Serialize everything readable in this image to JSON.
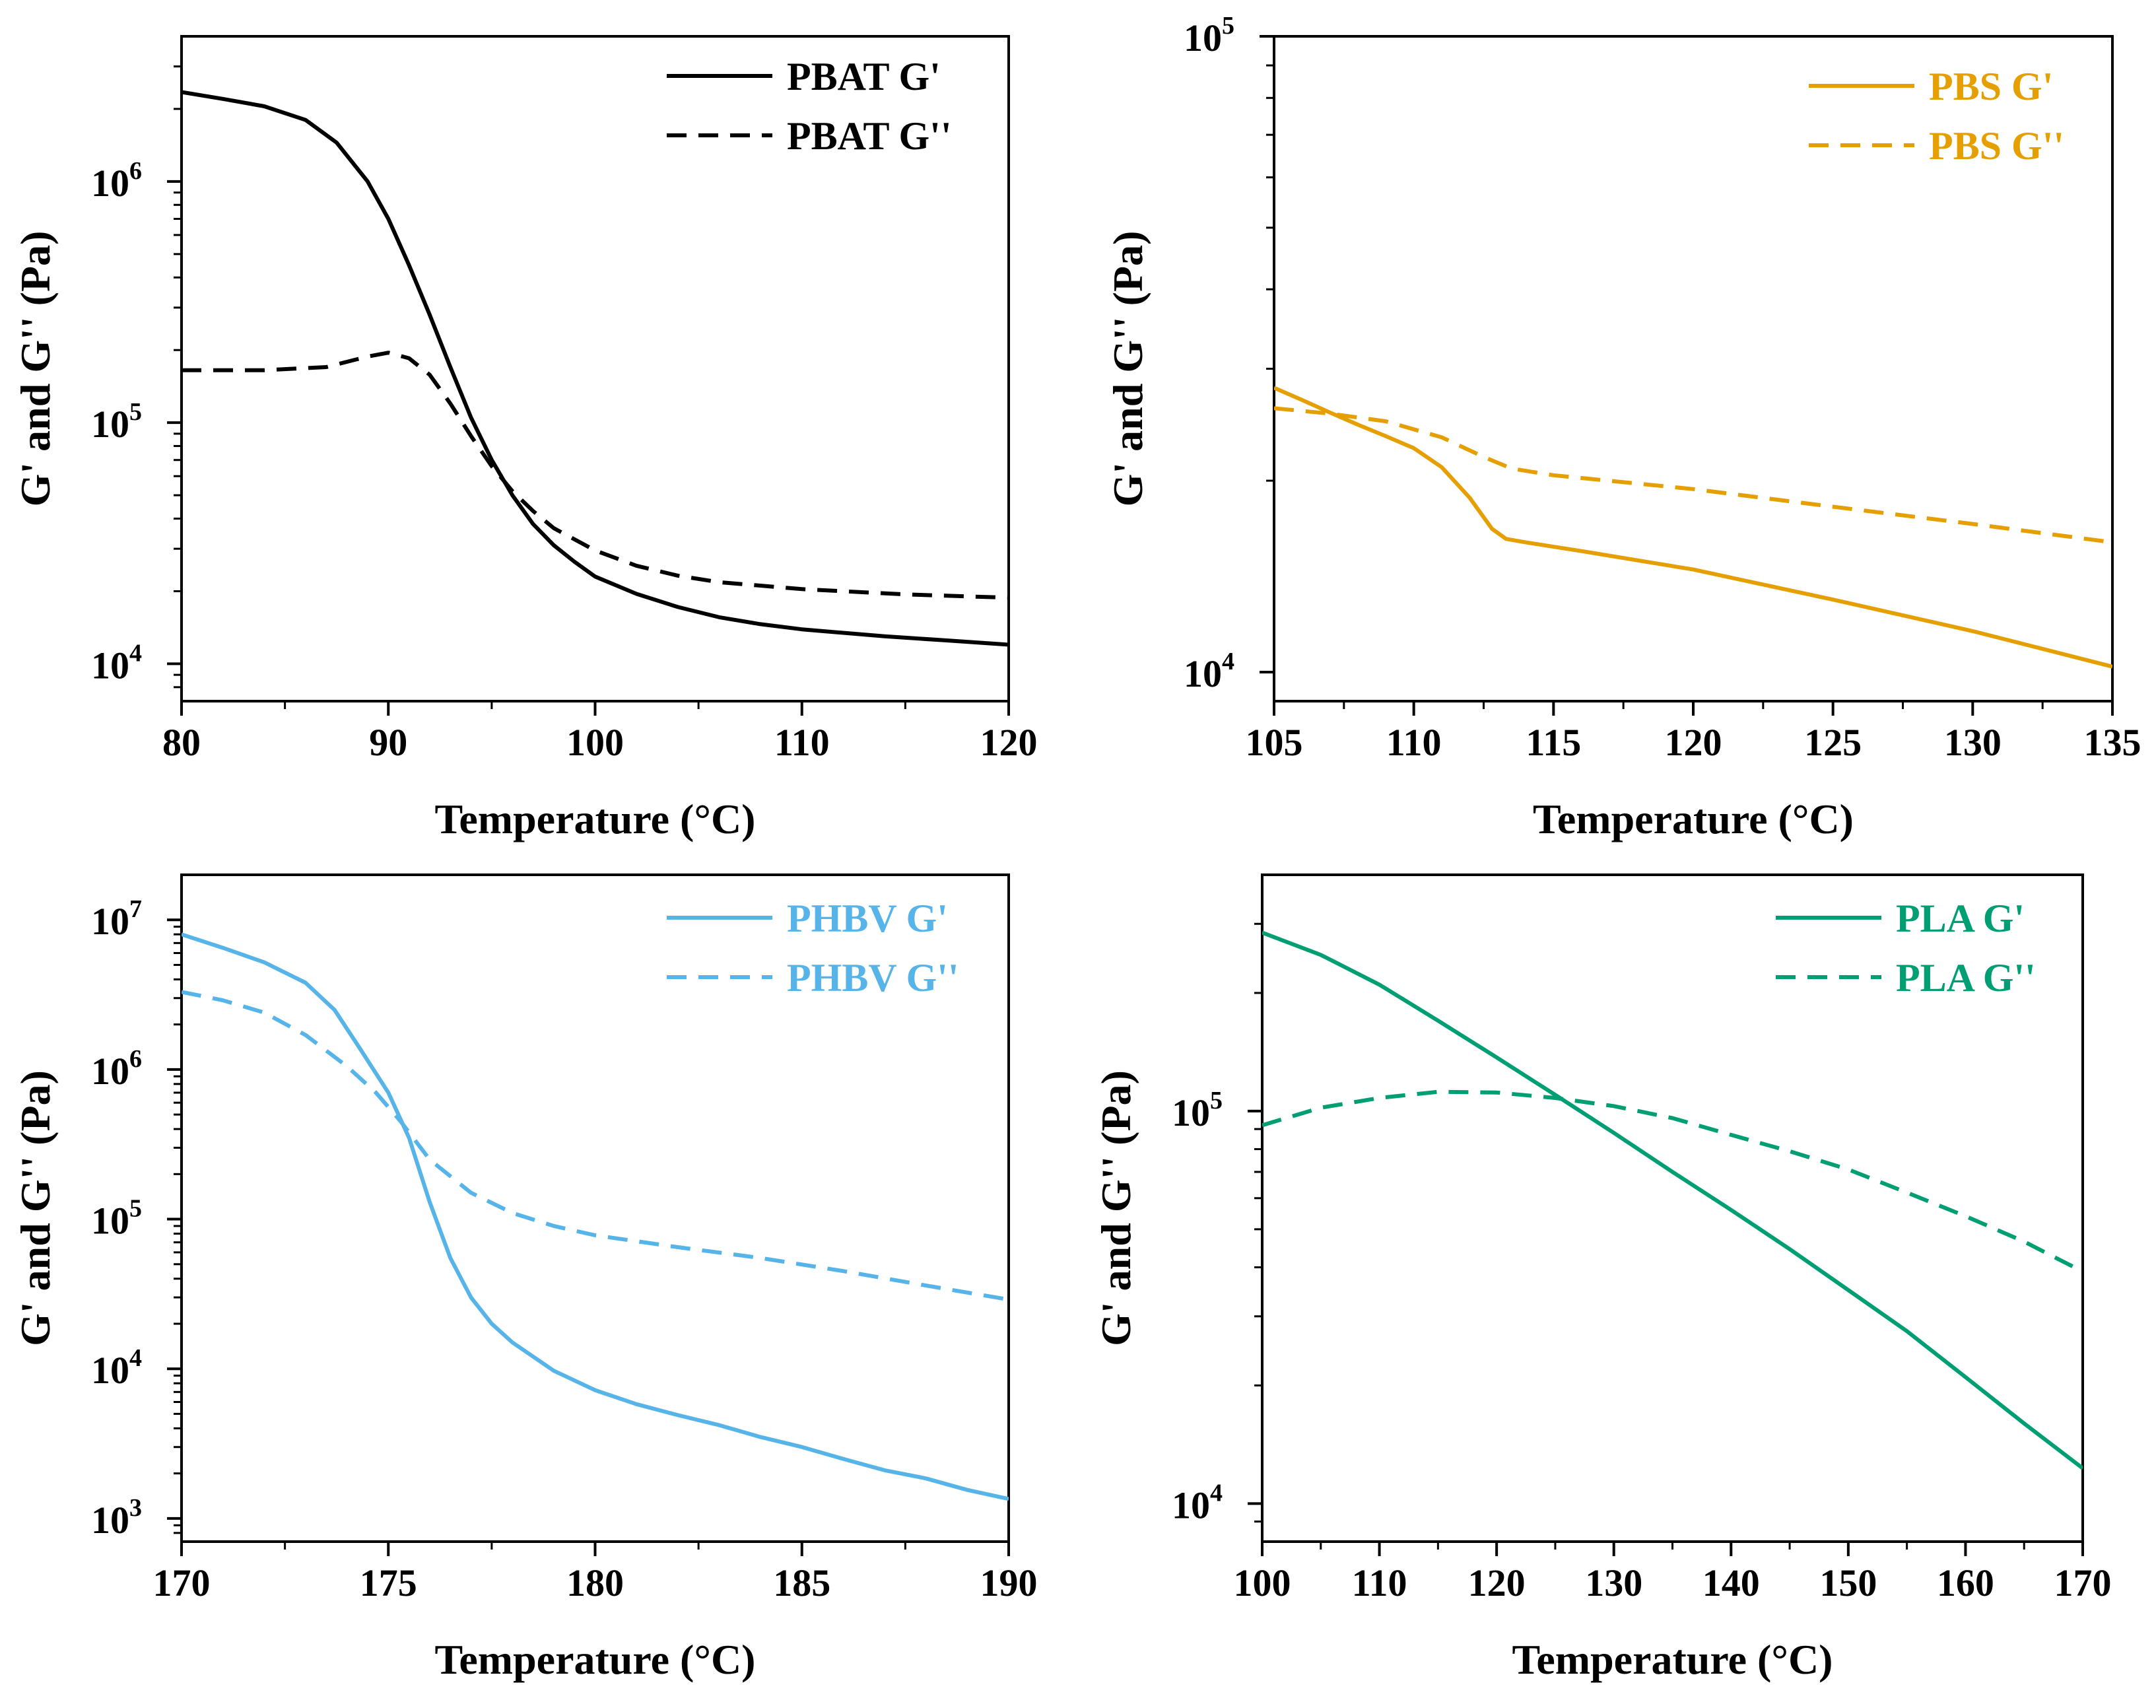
{
  "colors": {
    "pbat": "#000000",
    "pbs": "#E69F00",
    "phbv": "#56B4E9",
    "pla": "#009E73"
  },
  "chart_data": [
    {
      "type": "line",
      "id": "pbat",
      "color_key": "pbat",
      "xlabel": "Temperature (°C)",
      "ylabel": "G' and G'' (Pa)",
      "yscale": "log",
      "xlim": [
        80,
        120
      ],
      "ylim": [
        7000,
        4000000
      ],
      "xticks": [
        80,
        90,
        100,
        110,
        120
      ],
      "xtick_labels": [
        "80",
        "90",
        "100",
        "110",
        "120"
      ],
      "yticks": [
        {
          "value": 10000,
          "base": "10",
          "exp": "4"
        },
        {
          "value": 100000,
          "base": "10",
          "exp": "5"
        },
        {
          "value": 1000000,
          "base": "10",
          "exp": "6"
        }
      ],
      "legend_position": "top-right",
      "series": [
        {
          "name": "PBAT G'",
          "dash": "solid",
          "x": [
            80,
            82,
            84,
            86,
            87.5,
            89,
            90,
            91,
            92,
            93,
            94,
            95,
            96,
            97,
            98,
            99,
            100,
            102,
            104,
            106,
            108,
            110,
            114,
            117,
            120
          ],
          "y": [
            2350000,
            2200000,
            2050000,
            1800000,
            1450000,
            1000000,
            700000,
            450000,
            280000,
            170000,
            105000,
            70000,
            50000,
            38000,
            31000,
            26500,
            23000,
            19500,
            17200,
            15600,
            14600,
            13900,
            13000,
            12500,
            12000
          ]
        },
        {
          "name": "PBAT G''",
          "dash": "dashed",
          "x": [
            80,
            84,
            87,
            89,
            90,
            91,
            92,
            93,
            94,
            95,
            96,
            97,
            98,
            100,
            102,
            104,
            106,
            110,
            115,
            120
          ],
          "y": [
            165000,
            165000,
            170000,
            188000,
            195000,
            185000,
            158000,
            120000,
            88000,
            66000,
            52000,
            43000,
            36500,
            29500,
            25500,
            23200,
            21800,
            20400,
            19400,
            18800
          ]
        }
      ]
    },
    {
      "type": "line",
      "id": "pbs",
      "color_key": "pbs",
      "xlabel": "Temperature (°C)",
      "ylabel": "G' and G'' (Pa)",
      "yscale": "log",
      "xlim": [
        105,
        135
      ],
      "ylim": [
        9000,
        100000
      ],
      "xticks": [
        105,
        110,
        115,
        120,
        125,
        130,
        135
      ],
      "xtick_labels": [
        "105",
        "110",
        "115",
        "120",
        "125",
        "130",
        "135"
      ],
      "yticks": [
        {
          "value": 10000,
          "base": "10",
          "exp": "4"
        },
        {
          "value": 100000,
          "base": "10",
          "exp": "5"
        }
      ],
      "legend_position": "top-right",
      "series": [
        {
          "name": "PBS G'",
          "dash": "solid",
          "x": [
            105,
            106,
            107,
            108,
            109,
            110,
            111,
            112,
            112.8,
            113.3,
            114,
            116,
            120,
            125,
            130,
            135
          ],
          "y": [
            28000,
            26800,
            25600,
            24500,
            23500,
            22500,
            21000,
            18800,
            16800,
            16200,
            16000,
            15500,
            14500,
            13000,
            11600,
            10200
          ]
        },
        {
          "name": "PBS G''",
          "dash": "dashed",
          "x": [
            105,
            107,
            109,
            111,
            112.5,
            113.5,
            115,
            120,
            125,
            130,
            135
          ],
          "y": [
            26000,
            25500,
            24800,
            23400,
            21800,
            20900,
            20400,
            19400,
            18200,
            17100,
            16000
          ]
        }
      ]
    },
    {
      "type": "line",
      "id": "phbv",
      "color_key": "phbv",
      "xlabel": "Temperature (°C)",
      "ylabel": "G' and G'' (Pa)",
      "yscale": "log",
      "xlim": [
        170,
        190
      ],
      "ylim": [
        700,
        20000000
      ],
      "xticks": [
        170,
        175,
        180,
        185,
        190
      ],
      "xtick_labels": [
        "170",
        "175",
        "180",
        "185",
        "190"
      ],
      "yticks": [
        {
          "value": 1000,
          "base": "10",
          "exp": "3"
        },
        {
          "value": 10000,
          "base": "10",
          "exp": "4"
        },
        {
          "value": 100000,
          "base": "10",
          "exp": "5"
        },
        {
          "value": 1000000,
          "base": "10",
          "exp": "6"
        },
        {
          "value": 10000000,
          "base": "10",
          "exp": "7"
        }
      ],
      "legend_position": "top-right",
      "series": [
        {
          "name": "PHBV G'",
          "dash": "solid",
          "x": [
            170,
            171,
            172,
            173,
            173.7,
            174.3,
            175,
            175.5,
            176,
            176.5,
            177,
            177.5,
            178,
            179,
            180,
            181,
            182,
            183,
            184,
            185,
            186,
            187,
            188,
            189,
            190
          ],
          "y": [
            8000000,
            6500000,
            5200000,
            3800000,
            2500000,
            1400000,
            700000,
            350000,
            130000,
            55000,
            30000,
            20000,
            15000,
            9700,
            7200,
            5800,
            4900,
            4200,
            3500,
            3000,
            2500,
            2100,
            1850,
            1550,
            1350
          ]
        },
        {
          "name": "PHBV G''",
          "dash": "dashed",
          "x": [
            170,
            171,
            172,
            173,
            174,
            174.7,
            175.3,
            176,
            177,
            178,
            179,
            180,
            182,
            184,
            186,
            188,
            190
          ],
          "y": [
            3300000,
            2900000,
            2400000,
            1700000,
            1050000,
            700000,
            450000,
            250000,
            150000,
            110000,
            90000,
            78000,
            65000,
            55000,
            45000,
            36000,
            29000
          ]
        }
      ]
    },
    {
      "type": "line",
      "id": "pla",
      "color_key": "pla",
      "xlabel": "Temperature (°C)",
      "ylabel": "G' and G'' (Pa)",
      "yscale": "log",
      "xlim": [
        100,
        170
      ],
      "ylim": [
        8000,
        400000
      ],
      "xticks": [
        100,
        110,
        120,
        130,
        140,
        150,
        160,
        170
      ],
      "xtick_labels": [
        "100",
        "110",
        "120",
        "130",
        "140",
        "150",
        "160",
        "170"
      ],
      "yticks": [
        {
          "value": 10000,
          "base": "10",
          "exp": "4"
        },
        {
          "value": 100000,
          "base": "10",
          "exp": "5"
        }
      ],
      "legend_position": "top-right",
      "series": [
        {
          "name": "PLA G'",
          "dash": "solid",
          "x": [
            100,
            105,
            110,
            115,
            120,
            125,
            130,
            135,
            140,
            145,
            150,
            155,
            160,
            165,
            170
          ],
          "y": [
            285000,
            250000,
            210000,
            170000,
            137000,
            110000,
            88000,
            70000,
            56000,
            44500,
            35000,
            27500,
            21000,
            16000,
            12300
          ]
        },
        {
          "name": "PLA G''",
          "dash": "dashed",
          "x": [
            100,
            105,
            110,
            115,
            120,
            125,
            130,
            135,
            140,
            145,
            150,
            155,
            160,
            165,
            170
          ],
          "y": [
            92000,
            102000,
            108000,
            112000,
            111500,
            108000,
            103000,
            96000,
            87000,
            79000,
            71000,
            62000,
            54000,
            46500,
            39000
          ]
        }
      ]
    }
  ]
}
